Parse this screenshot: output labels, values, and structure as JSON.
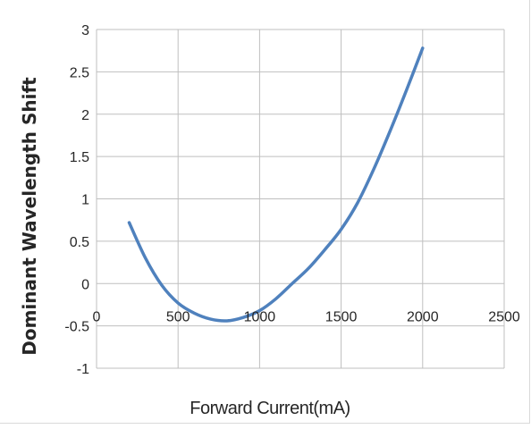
{
  "chart_data": {
    "type": "line",
    "title": "",
    "xlabel": "Forward Current(mA)",
    "ylabel": "Dominant Wavelength Shift",
    "xlim": [
      0,
      2500
    ],
    "ylim": [
      -1,
      3
    ],
    "x_ticks": [
      "0",
      "500",
      "1000",
      "1500",
      "2000",
      "2500"
    ],
    "y_ticks": [
      "-1",
      "-0.5",
      "0",
      "0.5",
      "1",
      "1.5",
      "2",
      "2.5",
      "3"
    ],
    "grid": true,
    "legend": "none",
    "series": [
      {
        "color": "#4f81bd",
        "x": [
          200,
          300,
          400,
          500,
          600,
          700,
          800,
          900,
          1000,
          1100,
          1200,
          1300,
          1400,
          1500,
          1600,
          1700,
          1800,
          1900,
          2000
        ],
        "y": [
          0.72,
          0.3,
          -0.02,
          -0.23,
          -0.35,
          -0.42,
          -0.44,
          -0.4,
          -0.32,
          -0.18,
          0.0,
          0.18,
          0.4,
          0.64,
          0.95,
          1.35,
          1.8,
          2.28,
          2.78
        ]
      }
    ]
  },
  "colors": {
    "line": "#4f81bd",
    "grid": "#bfbfbf",
    "text": "#262626"
  }
}
